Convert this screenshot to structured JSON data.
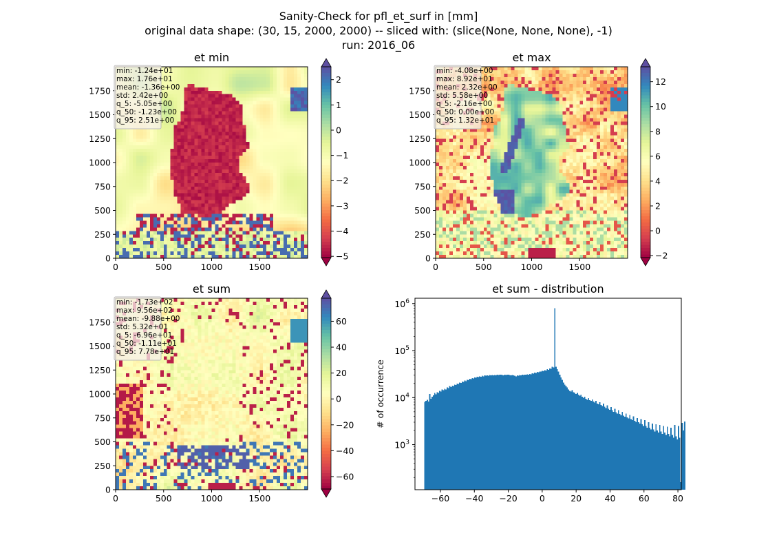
{
  "figure": {
    "title_lines": [
      "Sanity-Check for pfl_et_surf in [mm]",
      "original data shape: (30, 15, 2000, 2000) -- sliced with: (slice(None, None, None), -1)",
      "run: 2016_06"
    ]
  },
  "chart_data": [
    {
      "type": "heatmap",
      "title": "et min",
      "colormap": "Spectral",
      "x_ticks": [
        "0",
        "500",
        "1000",
        "1500"
      ],
      "y_ticks": [
        "0",
        "250",
        "500",
        "750",
        "1000",
        "1250",
        "1500",
        "1750"
      ],
      "xlim": [
        0,
        2000
      ],
      "ylim": [
        0,
        2000
      ],
      "colorbar_ticks": [
        "2",
        "1",
        "0",
        "−1",
        "−2",
        "−3",
        "−4",
        "−5"
      ],
      "colorbar_range": [
        -5.05,
        2.51
      ],
      "stats": [
        "min: -1.24e+01",
        "max: 1.76e+01",
        "mean: -1.36e+00",
        "std: 2.42e+00",
        "q_5: -5.05e+00",
        "q_50: -1.23e+00",
        "q_95: 2.51e+00"
      ]
    },
    {
      "type": "heatmap",
      "title": "et max",
      "colormap": "Spectral",
      "x_ticks": [
        "0",
        "500",
        "1000",
        "1500"
      ],
      "y_ticks": [
        "0",
        "250",
        "500",
        "750",
        "1000",
        "1250",
        "1500",
        "1750"
      ],
      "xlim": [
        0,
        2000
      ],
      "ylim": [
        0,
        2000
      ],
      "colorbar_ticks": [
        "12",
        "10",
        "8",
        "6",
        "4",
        "2",
        "0",
        "−2"
      ],
      "colorbar_range": [
        -2.16,
        13.2
      ],
      "stats": [
        "min: -4.08e+00",
        "max: 8.92e+01",
        "mean: 2.32e+00",
        "std: 5.58e+00",
        "q_5: -2.16e+00",
        "q_50: 0.00e+00",
        "q_95: 1.32e+01"
      ]
    },
    {
      "type": "heatmap",
      "title": "et sum",
      "colormap": "Spectral",
      "x_ticks": [
        "0",
        "500",
        "1000",
        "1500"
      ],
      "y_ticks": [
        "0",
        "250",
        "500",
        "750",
        "1000",
        "1250",
        "1500",
        "1750"
      ],
      "xlim": [
        0,
        2000
      ],
      "ylim": [
        0,
        2000
      ],
      "colorbar_ticks": [
        "60",
        "40",
        "20",
        "0",
        "−20",
        "−40",
        "−60"
      ],
      "colorbar_range": [
        -69.6,
        77.8
      ],
      "stats": [
        "min: -1.73e+02",
        "max: 9.56e+02",
        "mean: -9.88e+00",
        "std: 5.32e+01",
        "q_5: -6.96e+01",
        "q_50: -1.11e+01",
        "q_95: 7.78e+01"
      ]
    },
    {
      "type": "bar",
      "title": "et sum - distribution",
      "ylabel": "# of occurrence",
      "yscale": "log",
      "x_ticks": [
        "−60",
        "−40",
        "−20",
        "0",
        "20",
        "40",
        "60",
        "80"
      ],
      "xlim": [
        -75,
        82
      ],
      "ylim": [
        110,
        1300000
      ],
      "color": "#1f77b4",
      "bins": {
        "start": -69.6,
        "width": 0.737,
        "counts": [
          8100,
          8500,
          9000,
          8300,
          12000,
          9500,
          10500,
          11200,
          12500,
          11800,
          13000,
          12500,
          14000,
          13500,
          15000,
          14500,
          15500,
          15000,
          16500,
          16000,
          17500,
          16800,
          18000,
          17500,
          19000,
          18500,
          20000,
          19500,
          21000,
          20500,
          22000,
          21500,
          23000,
          22500,
          24000,
          23500,
          25000,
          24500,
          26000,
          25500,
          27000,
          26500,
          28000,
          27500,
          28500,
          28000,
          29000,
          28500,
          29500,
          29000,
          29800,
          29200,
          30000,
          29500,
          30200,
          29700,
          30000,
          29500,
          30500,
          30000,
          31000,
          30500,
          30000,
          29500,
          30500,
          30000,
          31000,
          30500,
          30000,
          29500,
          30000,
          29500,
          29000,
          28500,
          29500,
          29000,
          30000,
          29500,
          30500,
          30000,
          31000,
          30500,
          31500,
          31000,
          32000,
          31500,
          33000,
          32500,
          34000,
          33500,
          35000,
          34500,
          36000,
          35500,
          37000,
          36500,
          38000,
          37500,
          40000,
          39000,
          42000,
          41000,
          45000,
          44000,
          800000,
          45000,
          40000,
          36000,
          31000,
          27000,
          24000,
          21000,
          19000,
          17500,
          16500,
          15000,
          14000,
          13500,
          14500,
          13000,
          12500,
          12000,
          12500,
          11500,
          11000,
          11500,
          10500,
          10000,
          10500,
          9500,
          9000,
          9800,
          8800,
          8500,
          9200,
          8200,
          7800,
          8600,
          7500,
          7200,
          8000,
          7000,
          6600,
          7400,
          6400,
          6000,
          6800,
          5800,
          5500,
          6300,
          5400,
          5000,
          5800,
          4900,
          4600,
          5400,
          4500,
          4200,
          5000,
          4100,
          3900,
          4600,
          3800,
          3600,
          4300,
          3500,
          3300,
          4000,
          3200,
          3000,
          3700,
          3000,
          2800,
          3500,
          2700,
          2500,
          3300,
          2500,
          2300,
          3000,
          2300,
          2100,
          2800,
          2100,
          1900,
          2700,
          2000,
          1800,
          2600,
          1900,
          1700,
          2500,
          1800,
          1600,
          2400,
          1700,
          1500,
          2300,
          1600,
          1400,
          2600,
          1500,
          1300,
          2500,
          1400,
          160,
          2900,
          2000,
          3100
        ]
      }
    }
  ]
}
